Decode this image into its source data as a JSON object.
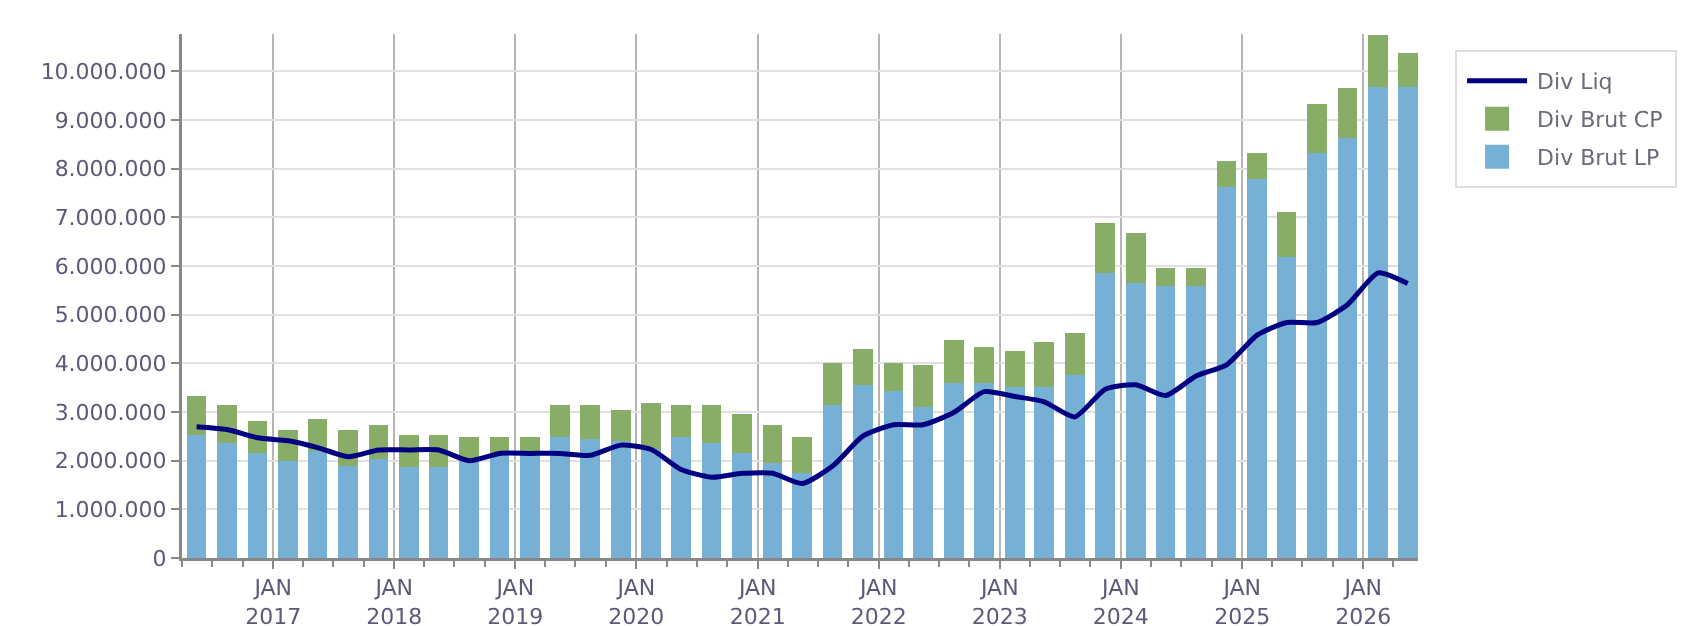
{
  "chart_data": {
    "type": "bar",
    "stacked": true,
    "x": [
      "2016-05-15",
      "2016-08-15",
      "2016-11-15",
      "2017-02-15",
      "2017-05-15",
      "2017-08-15",
      "2017-11-15",
      "2018-02-15",
      "2018-05-15",
      "2018-08-15",
      "2018-11-15",
      "2019-02-15",
      "2019-05-15",
      "2019-08-15",
      "2019-11-15",
      "2020-02-15",
      "2020-05-15",
      "2020-08-15",
      "2020-11-15",
      "2021-02-15",
      "2021-05-15",
      "2021-08-15",
      "2021-11-15",
      "2022-02-15",
      "2022-05-15",
      "2022-08-15",
      "2022-11-15",
      "2023-02-15",
      "2023-05-15",
      "2023-08-15",
      "2023-11-15",
      "2024-02-15",
      "2024-05-15",
      "2024-08-15",
      "2024-11-15",
      "2025-02-15",
      "2025-05-15",
      "2025-08-15",
      "2025-11-15",
      "2026-02-15",
      "2026-05-15"
    ],
    "series": [
      {
        "name": "Div Brut LP",
        "color": "#76b0d4",
        "values": [
          2530000,
          2370000,
          2150000,
          1990000,
          2190000,
          1900000,
          2040000,
          1880000,
          1880000,
          2050000,
          2120000,
          2150000,
          2480000,
          2440000,
          2400000,
          2250000,
          2480000,
          2370000,
          2150000,
          1960000,
          1740000,
          3140000,
          3550000,
          3440000,
          3110000,
          3600000,
          3590000,
          3510000,
          3520000,
          3770000,
          5850000,
          5660000,
          5590000,
          5590000,
          7620000,
          7790000,
          6180000,
          8320000,
          8640000,
          9680000,
          9680000
        ]
      },
      {
        "name": "Div Brut CP",
        "color": "#87ad67",
        "values": [
          810000,
          770000,
          660000,
          650000,
          660000,
          740000,
          690000,
          640000,
          640000,
          430000,
          360000,
          330000,
          670000,
          710000,
          650000,
          930000,
          660000,
          770000,
          820000,
          770000,
          740000,
          860000,
          740000,
          560000,
          850000,
          890000,
          740000,
          740000,
          930000,
          850000,
          1030000,
          1010000,
          380000,
          380000,
          530000,
          530000,
          940000,
          1020000,
          1030000,
          1060000,
          690000
        ]
      },
      {
        "name": "Div Liq",
        "type": "line",
        "color": "#000080",
        "values": [
          2700000,
          2640000,
          2470000,
          2410000,
          2270000,
          2080000,
          2220000,
          2220000,
          2220000,
          2000000,
          2150000,
          2150000,
          2150000,
          2110000,
          2320000,
          2230000,
          1820000,
          1660000,
          1740000,
          1740000,
          1530000,
          1890000,
          2510000,
          2740000,
          2740000,
          2990000,
          3420000,
          3320000,
          3210000,
          2900000,
          3470000,
          3560000,
          3340000,
          3740000,
          3970000,
          4580000,
          4840000,
          4840000,
          5210000,
          5860000,
          5640000
        ]
      }
    ],
    "xlim": [
      "2016-04-01",
      "2026-06-15"
    ],
    "xticks": [
      {
        "value": "2017-01-01",
        "label": "JAN\n2017"
      },
      {
        "value": "2018-01-01",
        "label": "JAN\n2018"
      },
      {
        "value": "2019-01-01",
        "label": "JAN\n2019"
      },
      {
        "value": "2020-01-01",
        "label": "JAN\n2020"
      },
      {
        "value": "2021-01-01",
        "label": "JAN\n2021"
      },
      {
        "value": "2022-01-01",
        "label": "JAN\n2022"
      },
      {
        "value": "2023-01-01",
        "label": "JAN\n2023"
      },
      {
        "value": "2024-01-01",
        "label": "JAN\n2024"
      },
      {
        "value": "2025-01-01",
        "label": "JAN\n2025"
      },
      {
        "value": "2026-01-01",
        "label": "JAN\n2026"
      }
    ],
    "ylim": [
      0,
      10770000
    ],
    "yticks": [
      0,
      {
        "value": 1000000,
        "label": "1.000.000"
      },
      {
        "value": 2000000,
        "label": "2.000.000"
      },
      {
        "value": 3000000,
        "label": "3.000.000"
      },
      {
        "value": 4000000,
        "label": "4.000.000"
      },
      {
        "value": 5000000,
        "label": "5.000.000"
      },
      {
        "value": 6000000,
        "label": "6.000.000"
      },
      {
        "value": 7000000,
        "label": "7.000.000"
      },
      {
        "value": 8000000,
        "label": "8.000.000"
      },
      {
        "value": 9000000,
        "label": "9.000.000"
      },
      {
        "value": 10000000,
        "label": "10.000.000"
      }
    ],
    "grid": true,
    "legend": "top right",
    "marker": "none",
    "line_style": "solid"
  }
}
